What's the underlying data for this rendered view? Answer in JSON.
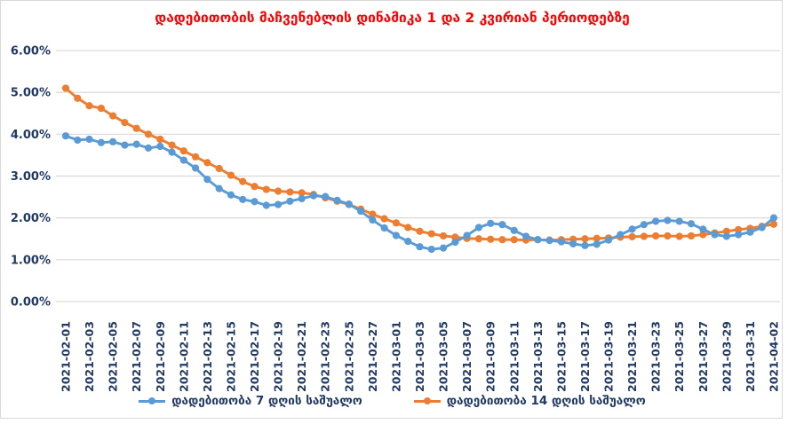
{
  "colors": {
    "series_blue": "#5B9BD5",
    "series_orange": "#ED7D31",
    "title_red": "#FF0000",
    "axis_text": "#1F3864",
    "gridline": "#D9D9D9",
    "frame_border": "#D9D9D9",
    "background": "#FFFFFF"
  },
  "chart_data": {
    "type": "line",
    "title": "დადებითობის მაჩვენებლის დინამიკა 1 და 2 კვირიან პერიოდებზე",
    "xlabel": "",
    "ylabel": "",
    "ylim": [
      0,
      6
    ],
    "y_unit": "%",
    "grid": true,
    "legend_position": "bottom",
    "x_label_step": 2,
    "y_ticks": [
      "6.00%",
      "5.00%",
      "4.00%",
      "3.00%",
      "2.00%",
      "1.00%",
      "0.00%"
    ],
    "x": [
      "2021-02-01",
      "2021-02-02",
      "2021-02-03",
      "2021-02-04",
      "2021-02-05",
      "2021-02-06",
      "2021-02-07",
      "2021-02-08",
      "2021-02-09",
      "2021-02-10",
      "2021-02-11",
      "2021-02-12",
      "2021-02-13",
      "2021-02-14",
      "2021-02-15",
      "2021-02-16",
      "2021-02-17",
      "2021-02-18",
      "2021-02-19",
      "2021-02-20",
      "2021-02-21",
      "2021-02-22",
      "2021-02-23",
      "2021-02-24",
      "2021-02-25",
      "2021-02-26",
      "2021-02-27",
      "2021-02-28",
      "2021-03-01",
      "2021-03-02",
      "2021-03-03",
      "2021-03-04",
      "2021-03-05",
      "2021-03-06",
      "2021-03-07",
      "2021-03-08",
      "2021-03-09",
      "2021-03-10",
      "2021-03-11",
      "2021-03-12",
      "2021-03-13",
      "2021-03-14",
      "2021-03-15",
      "2021-03-16",
      "2021-03-17",
      "2021-03-18",
      "2021-03-19",
      "2021-03-20",
      "2021-03-21",
      "2021-03-22",
      "2021-03-23",
      "2021-03-24",
      "2021-03-25",
      "2021-03-26",
      "2021-03-27",
      "2021-03-28",
      "2021-03-29",
      "2021-03-30",
      "2021-03-31",
      "2021-04-01",
      "2021-04-02"
    ],
    "series": [
      {
        "name": "დადებითობა 7 დღის საშუალო",
        "color": "#5B9BD5",
        "values": [
          3.96,
          3.86,
          3.88,
          3.8,
          3.82,
          3.74,
          3.76,
          3.67,
          3.71,
          3.57,
          3.38,
          3.19,
          2.92,
          2.7,
          2.55,
          2.44,
          2.39,
          2.3,
          2.32,
          2.4,
          2.46,
          2.53,
          2.51,
          2.42,
          2.33,
          2.16,
          1.95,
          1.76,
          1.58,
          1.44,
          1.31,
          1.25,
          1.28,
          1.42,
          1.58,
          1.77,
          1.87,
          1.84,
          1.7,
          1.56,
          1.48,
          1.46,
          1.43,
          1.38,
          1.34,
          1.37,
          1.47,
          1.6,
          1.73,
          1.84,
          1.92,
          1.94,
          1.92,
          1.86,
          1.73,
          1.6,
          1.56,
          1.6,
          1.66,
          1.77,
          2.0
        ]
      },
      {
        "name": "დადებითობა 14 დღის საშუალო",
        "color": "#ED7D31",
        "values": [
          5.1,
          4.86,
          4.68,
          4.62,
          4.44,
          4.28,
          4.14,
          4.0,
          3.88,
          3.74,
          3.6,
          3.46,
          3.32,
          3.18,
          3.02,
          2.87,
          2.75,
          2.68,
          2.64,
          2.62,
          2.6,
          2.56,
          2.48,
          2.4,
          2.32,
          2.21,
          2.09,
          1.98,
          1.88,
          1.77,
          1.68,
          1.62,
          1.57,
          1.54,
          1.51,
          1.5,
          1.49,
          1.48,
          1.48,
          1.47,
          1.48,
          1.47,
          1.48,
          1.49,
          1.5,
          1.51,
          1.52,
          1.54,
          1.55,
          1.56,
          1.57,
          1.57,
          1.56,
          1.57,
          1.6,
          1.64,
          1.68,
          1.72,
          1.75,
          1.8,
          1.85
        ]
      }
    ]
  }
}
